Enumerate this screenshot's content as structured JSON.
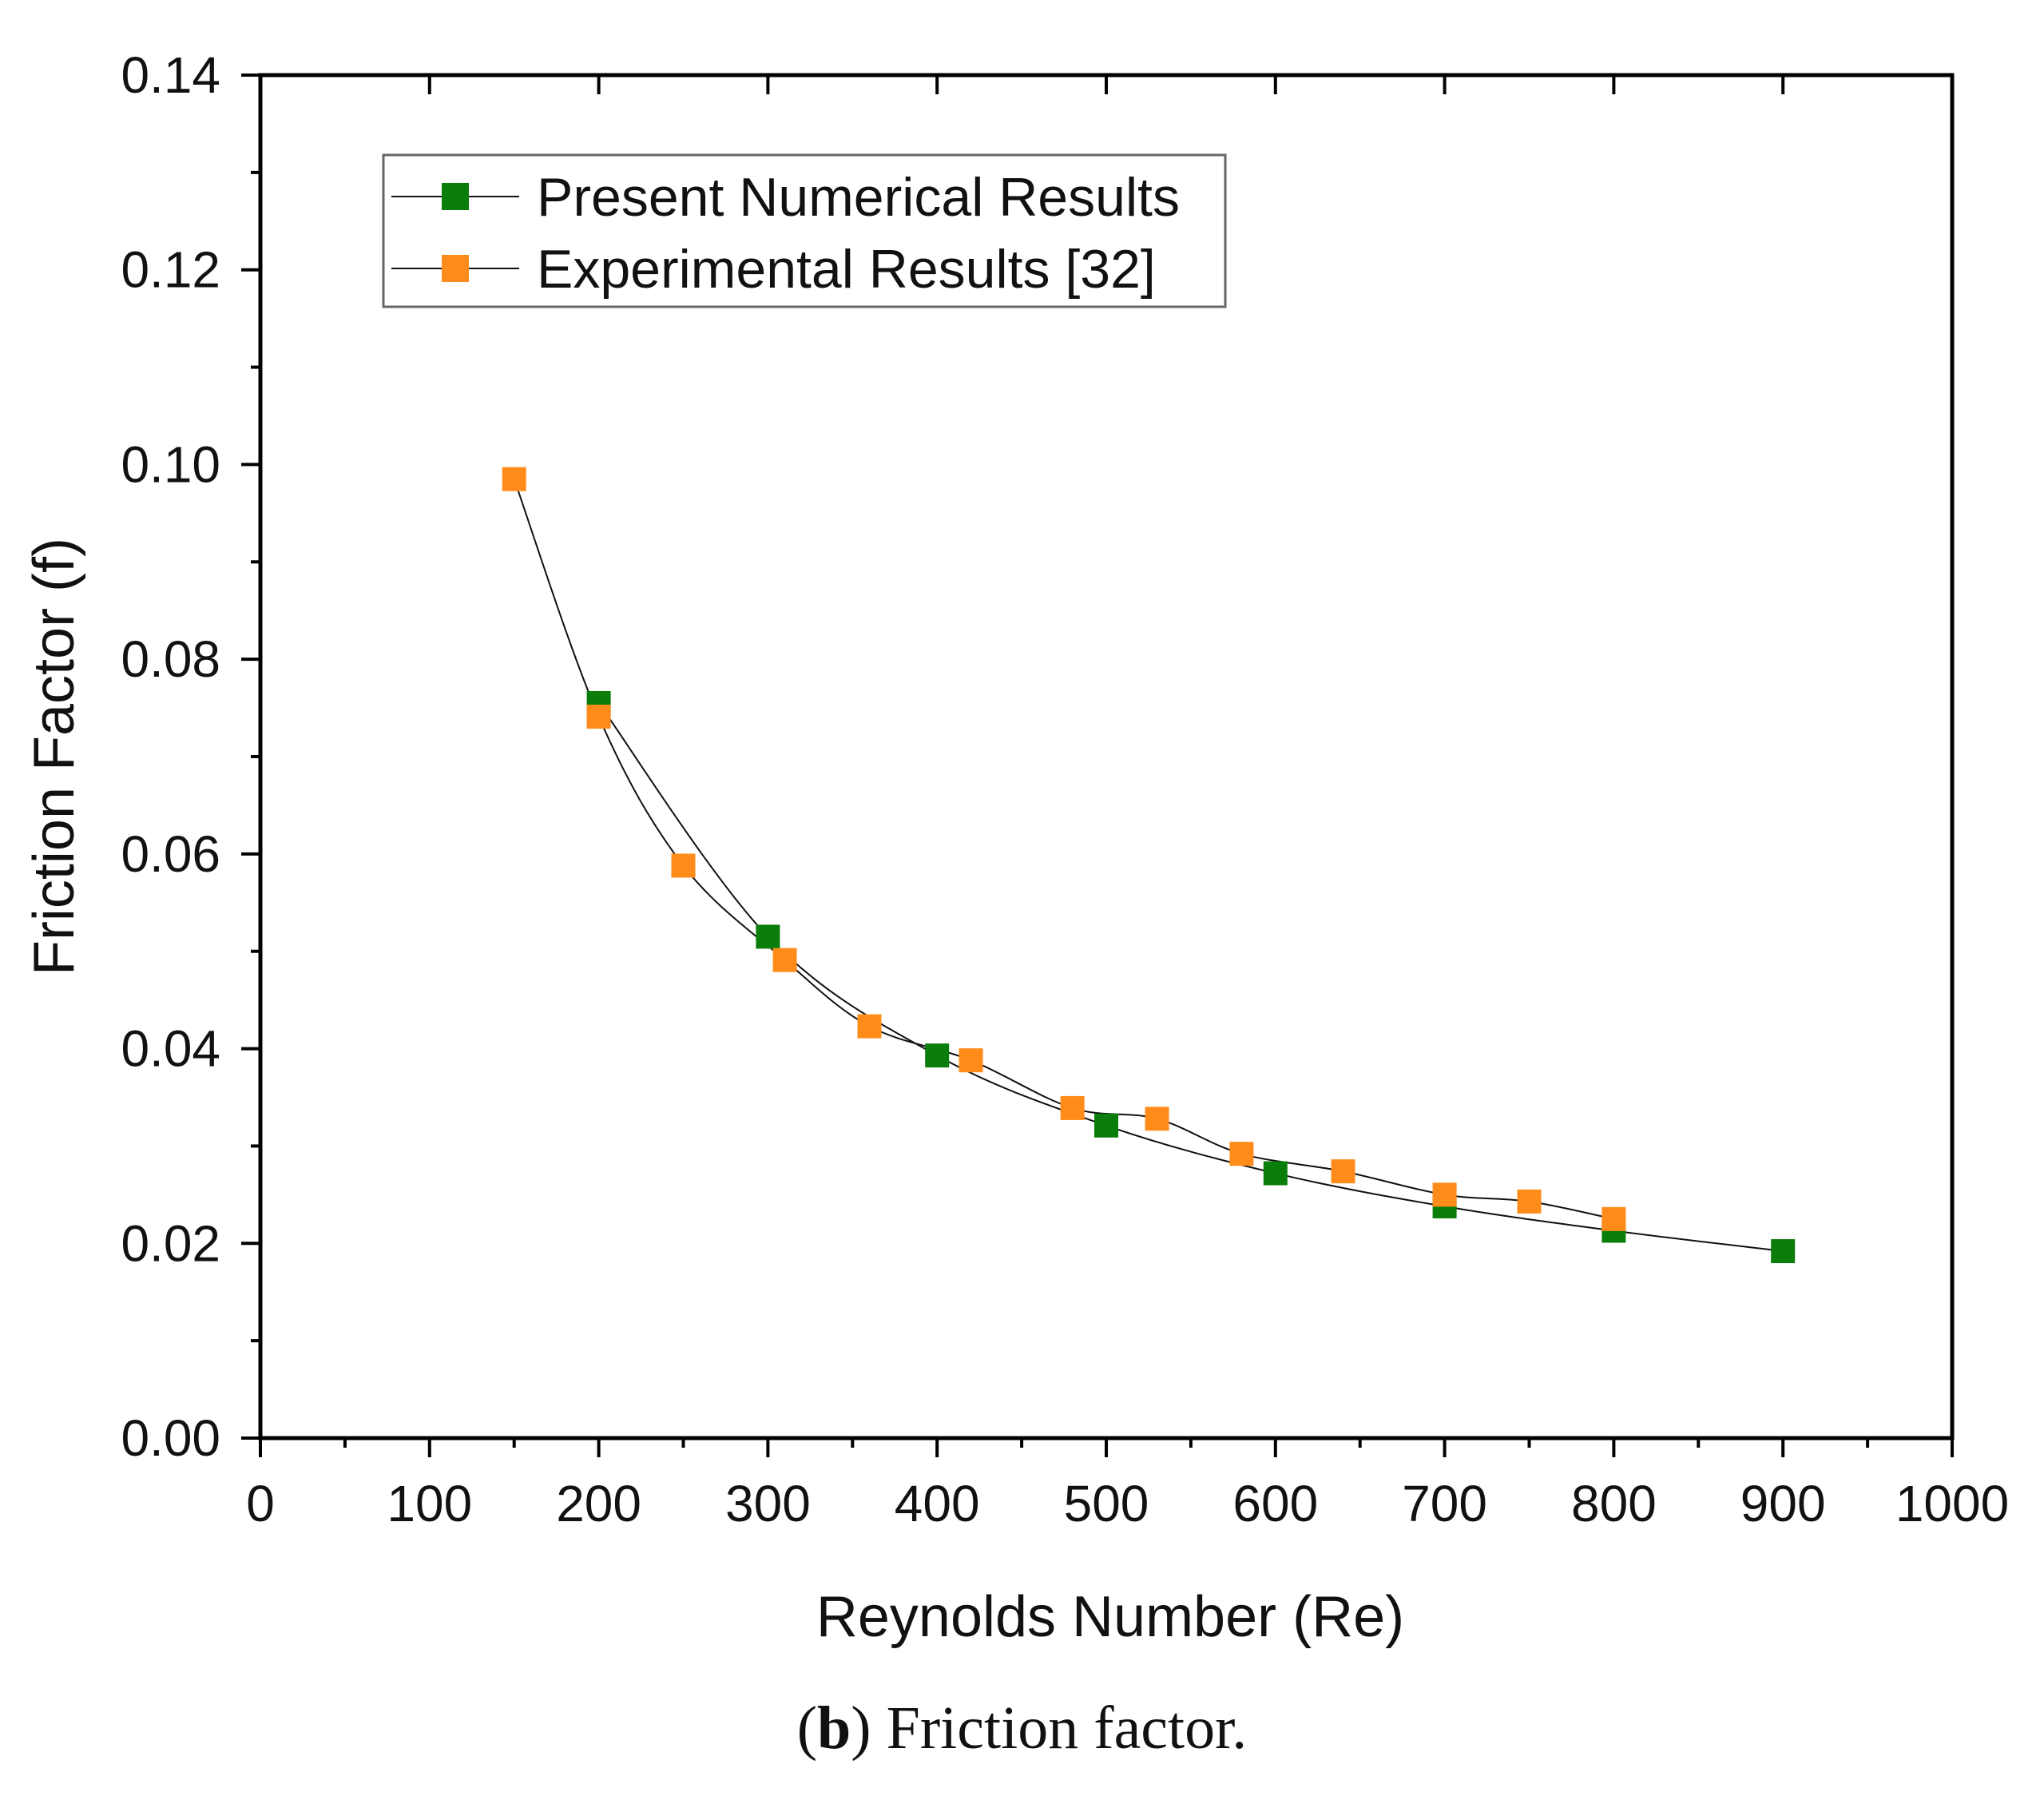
{
  "chart_data": {
    "type": "scatter",
    "title": "",
    "xlabel": "Reynolds Number (Re)",
    "ylabel": "Friction Factor (f)",
    "xlim": [
      0,
      1000
    ],
    "ylim": [
      0.0,
      0.14
    ],
    "x_ticks": [
      "0",
      "100",
      "200",
      "300",
      "400",
      "500",
      "600",
      "700",
      "800",
      "900",
      "1000"
    ],
    "y_ticks": [
      "0.00",
      "0.02",
      "0.04",
      "0.06",
      "0.08",
      "0.10",
      "0.12",
      "0.14"
    ],
    "x_tick_values": [
      0,
      100,
      200,
      300,
      400,
      500,
      600,
      700,
      800,
      900,
      1000
    ],
    "y_tick_values": [
      0.0,
      0.02,
      0.04,
      0.06,
      0.08,
      0.1,
      0.12,
      0.14
    ],
    "legend_position": "top-left",
    "series": [
      {
        "name": "Present Numerical Results",
        "color": "#0a7d0a",
        "marker": "square",
        "x": [
          200,
          300,
          400,
          500,
          600,
          700,
          800,
          900
        ],
        "y": [
          0.0755,
          0.0515,
          0.0393,
          0.0321,
          0.0272,
          0.0238,
          0.0213,
          0.0192
        ]
      },
      {
        "name": "Experimental Results [32]",
        "color": "#ff8c1a",
        "marker": "square",
        "x": [
          150,
          200,
          250,
          310,
          360,
          420,
          480,
          530,
          580,
          640,
          700,
          750,
          800
        ],
        "y": [
          0.0985,
          0.0741,
          0.0588,
          0.0491,
          0.0423,
          0.0388,
          0.0339,
          0.0328,
          0.0292,
          0.0274,
          0.025,
          0.0243,
          0.0225
        ]
      }
    ]
  },
  "caption": {
    "label": "b",
    "text": " Friction factor."
  }
}
